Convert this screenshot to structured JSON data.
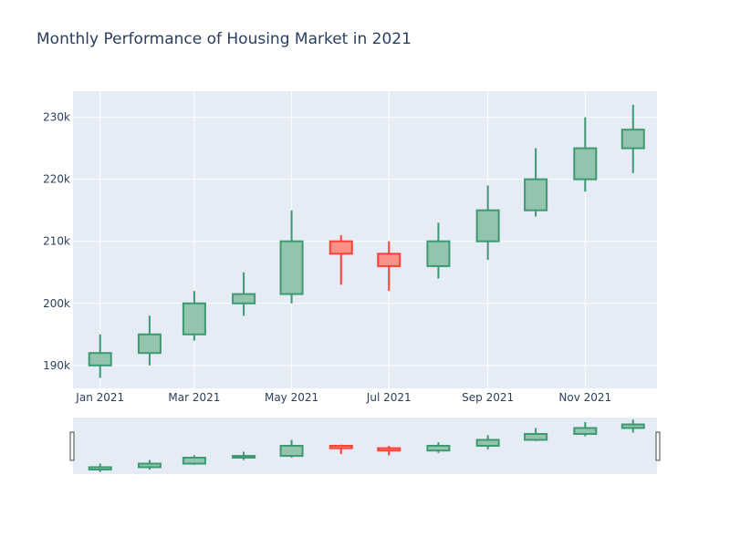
{
  "chart_data": {
    "type": "candlestick",
    "title": "Monthly Performance of Housing Market in 2021",
    "x": [
      "2021-01",
      "2021-02",
      "2021-03",
      "2021-04",
      "2021-05",
      "2021-06",
      "2021-07",
      "2021-08",
      "2021-09",
      "2021-10",
      "2021-11",
      "2021-12"
    ],
    "open": [
      190000,
      192000,
      195000,
      200000,
      201500,
      210000,
      208000,
      206000,
      210000,
      215000,
      220000,
      225000
    ],
    "high": [
      195000,
      198000,
      202000,
      205000,
      215000,
      211000,
      210000,
      213000,
      219000,
      225000,
      230000,
      232000
    ],
    "low": [
      188000,
      190000,
      194000,
      198000,
      200000,
      203000,
      202000,
      204000,
      207000,
      214000,
      218000,
      221000
    ],
    "close": [
      192000,
      195000,
      200000,
      201500,
      210000,
      208000,
      206000,
      210000,
      215000,
      220000,
      225000,
      228000
    ],
    "xtick_labels": [
      "Jan 2021",
      "Mar 2021",
      "May 2021",
      "Jul 2021",
      "Sep 2021",
      "Nov 2021"
    ],
    "yticks": [
      190000,
      200000,
      210000,
      220000,
      230000
    ],
    "ytick_labels": [
      "190k",
      "200k",
      "210k",
      "220k",
      "230k"
    ],
    "ylim": [
      186300,
      234200
    ],
    "grid": true,
    "rangeslider": true,
    "colors": {
      "increasing": "#3d9970",
      "increasing_fill": "#93c4ae",
      "decreasing": "#ff4136",
      "decreasing_fill": "#fa9188",
      "plot_bg": "#e5ecf6",
      "grid": "#ffffff",
      "text": "#2a3f5f"
    }
  }
}
